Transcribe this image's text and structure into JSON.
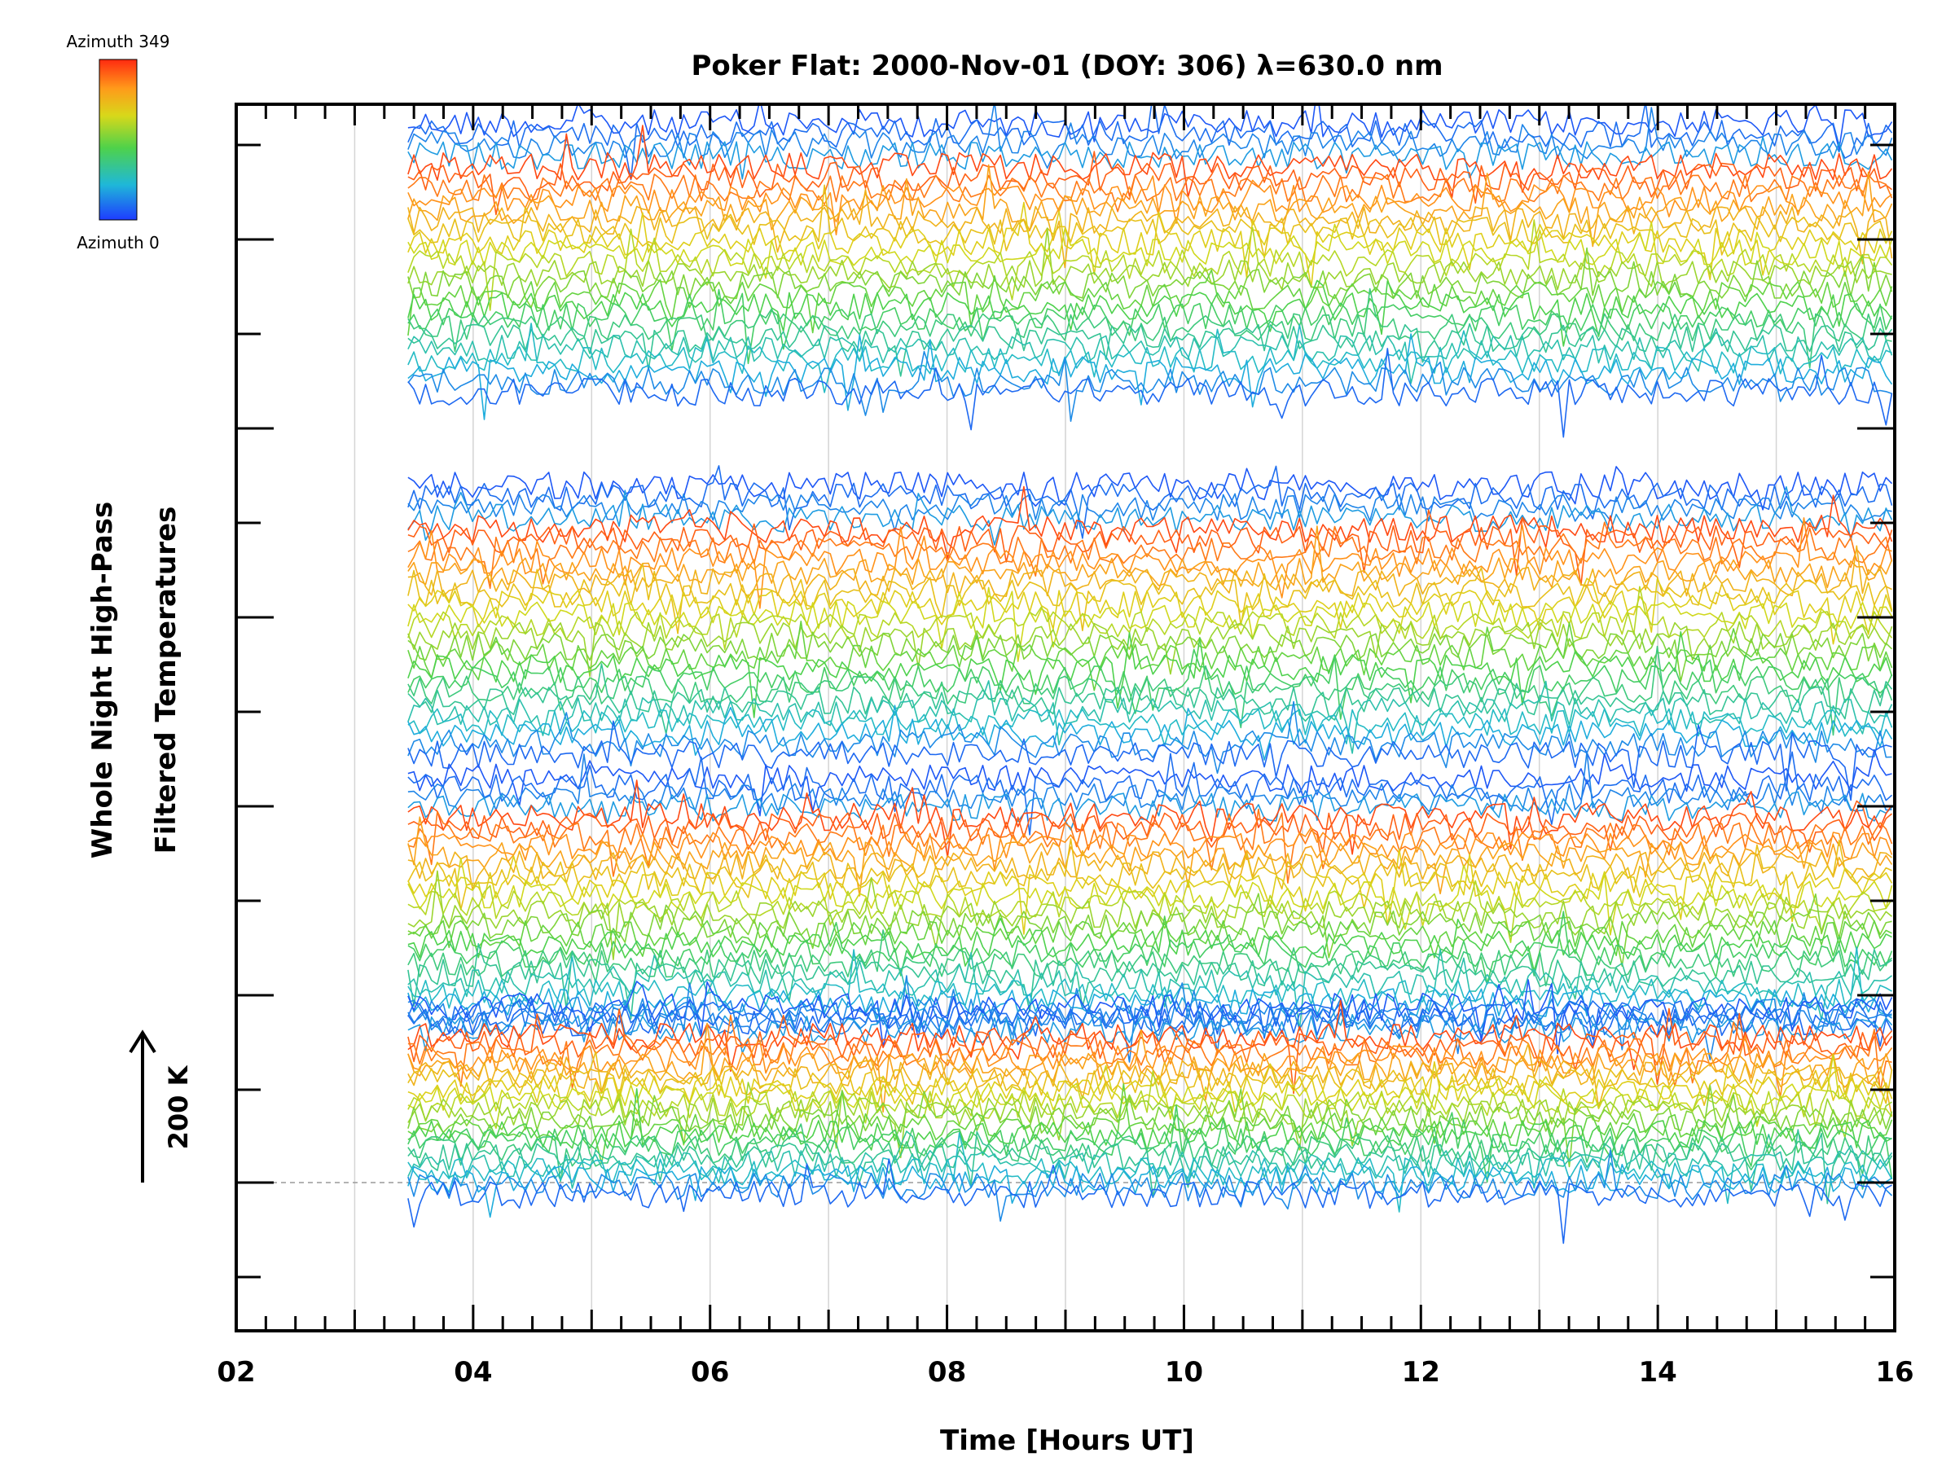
{
  "chart_data": {
    "type": "line",
    "title": "Poker Flat: 2000-Nov-01 (DOY: 306) λ=630.0 nm",
    "xlabel": "Time [Hours UT]",
    "ylabel_line1": "Whole Night High-Pass",
    "ylabel_line2": "Filtered Temperatures",
    "x_unit": "hours UT",
    "xlim": [
      2,
      16
    ],
    "x_ticks": [
      2,
      4,
      6,
      8,
      10,
      12,
      14,
      16
    ],
    "x_tick_labels": [
      "02",
      "04",
      "06",
      "08",
      "10",
      "12",
      "14",
      "16"
    ],
    "data_start_hour": 3.45,
    "data_end_hour": 16.0,
    "scale_bar": {
      "label": "200 K",
      "kelvin": 200
    },
    "colorbar": {
      "top_label": "Azimuth 349",
      "bottom_label": "Azimuth 0",
      "azimuth_range": [
        0,
        349
      ],
      "colormap": "rainbow (blue → green → yellow → red)"
    },
    "grid": {
      "vertical_hour_lines": true
    },
    "y_tick_labels": "none",
    "series_note": "Many overlapping noisy temperature traces, one per look direction, stacked in four vertical groups; each trace colored by azimuth",
    "groups": [
      {
        "name": "group-1",
        "azimuth_start": 0,
        "azimuth_end": 349
      },
      {
        "name": "group-2",
        "azimuth_start": 0,
        "azimuth_end": 349
      },
      {
        "name": "group-3",
        "azimuth_start": 0,
        "azimuth_end": 349
      },
      {
        "name": "group-4",
        "azimuth_start": 0,
        "azimuth_end": 349
      }
    ],
    "colors": {
      "cmap_blue": "#1e3cff",
      "cmap_cyan": "#1fb8d8",
      "cmap_green": "#4fd24a",
      "cmap_yellow": "#d8d81a",
      "cmap_orange": "#ff9a1a",
      "cmap_red": "#ff2a10",
      "grid": "#d4d4d4",
      "axis": "#000000"
    }
  }
}
